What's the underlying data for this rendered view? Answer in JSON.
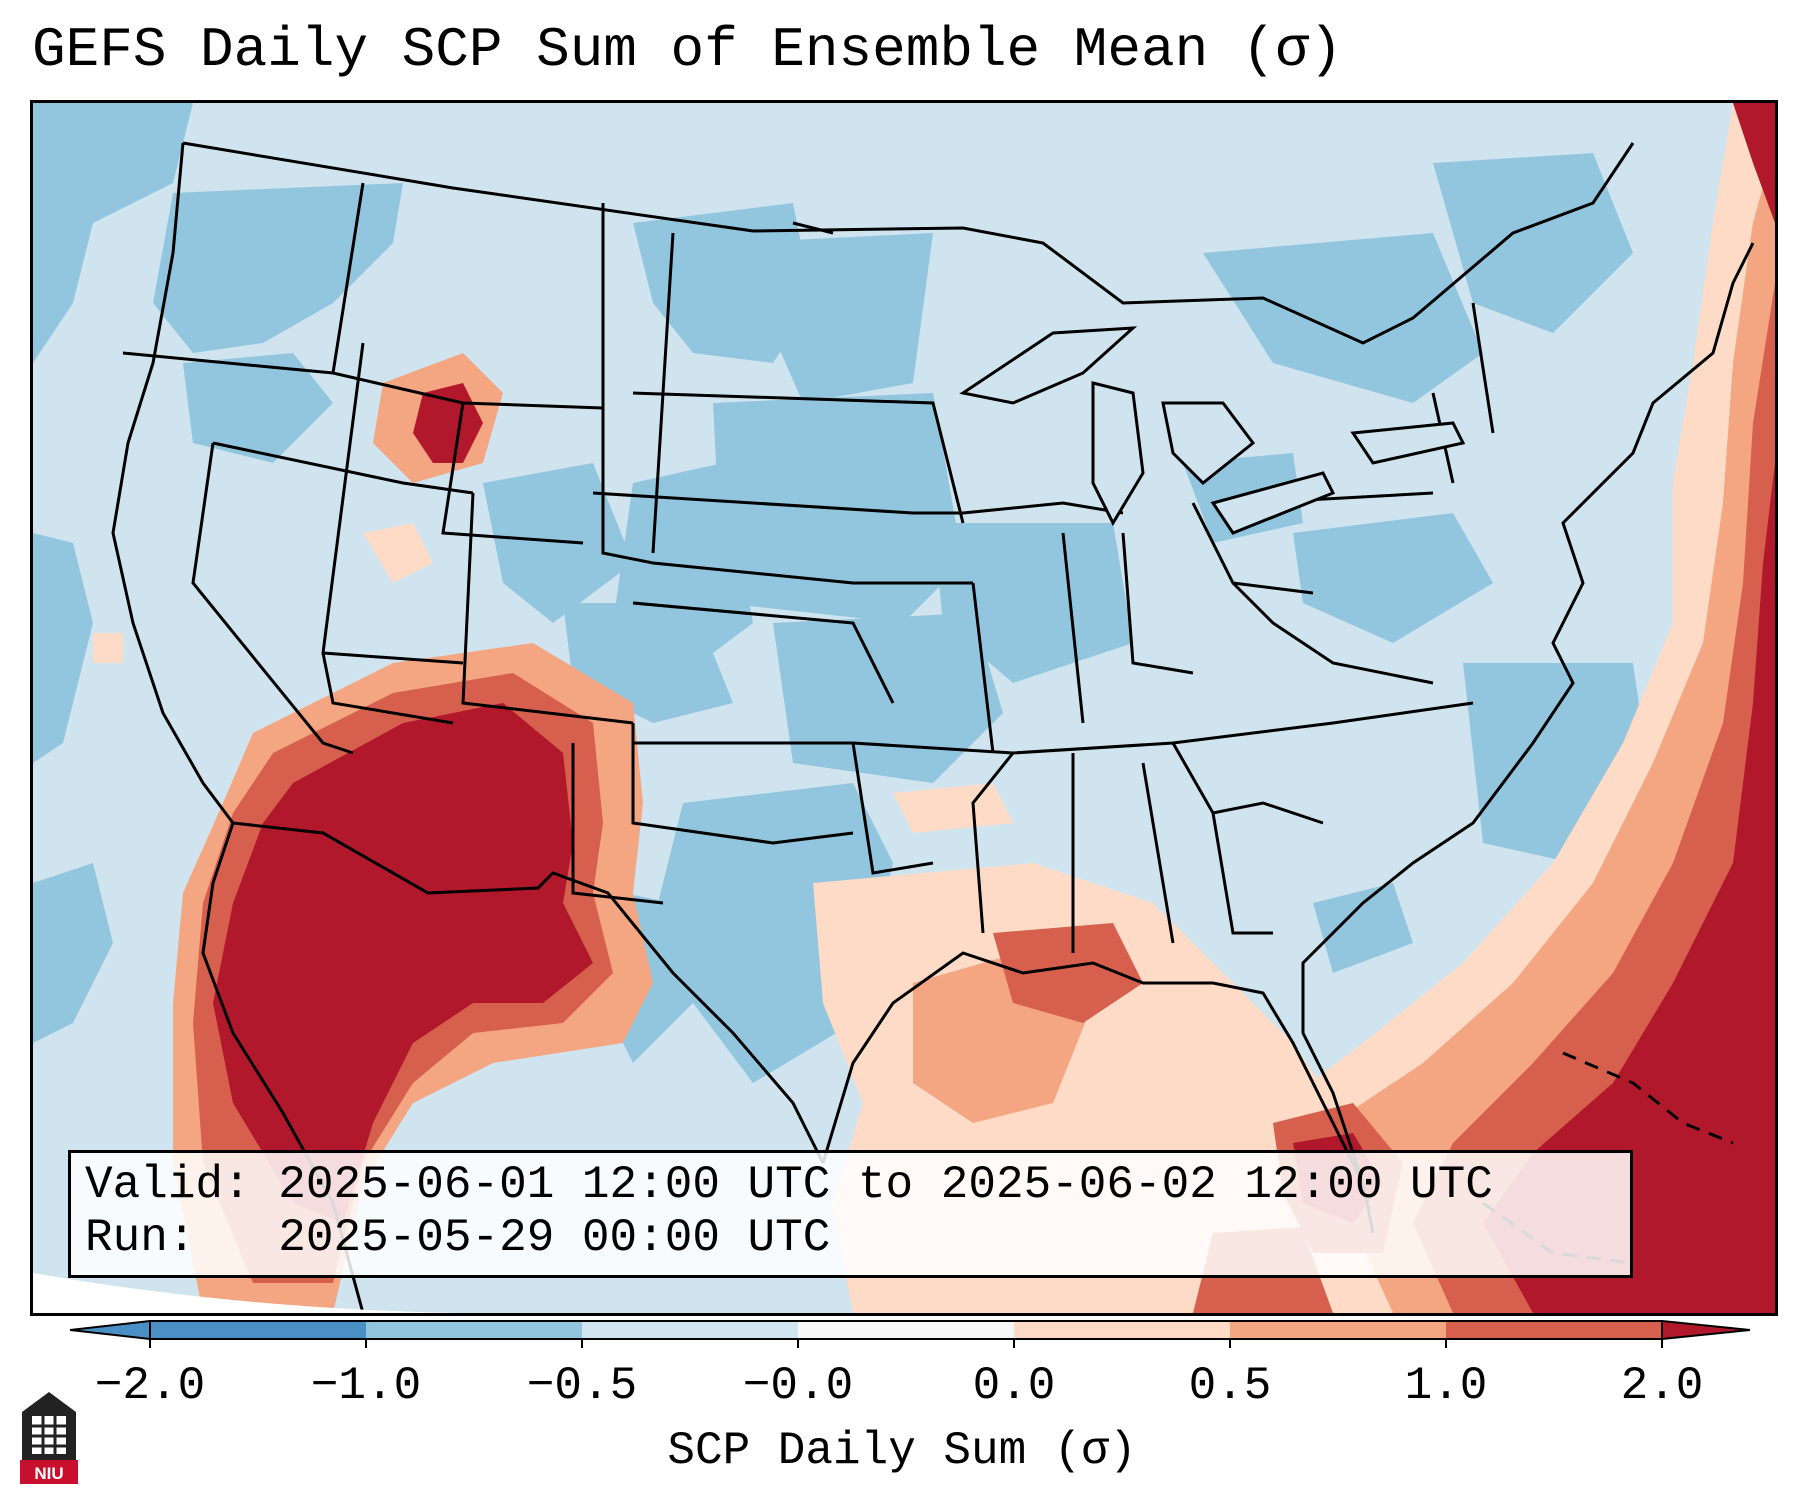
{
  "title": "GEFS Daily SCP Sum of Ensemble Mean (σ)",
  "info": {
    "valid_label": "Valid:",
    "valid_value": "2025-06-01 12:00 UTC to 2025-06-02 12:00 UTC",
    "run_label": "Run:",
    "run_value": "2025-05-29 00:00 UTC"
  },
  "colorbar": {
    "label": "SCP Daily Sum (σ)",
    "ticks": [
      "−2.0",
      "−1.0",
      "−0.5",
      "−0.0",
      "0.0",
      "0.5",
      "1.0",
      "2.0"
    ],
    "colors": [
      "#4a90c4",
      "#92c5de",
      "#d1e5f0",
      "#f7f7f7",
      "#fddbc7",
      "#f4a582",
      "#d6604d",
      "#b2182b"
    ]
  },
  "logo": {
    "text": "NIU"
  },
  "map": {
    "region": "Continental United States",
    "background_color": "#d0e4ef",
    "warm_color_strong": "#b2182b",
    "warm_color_mid": "#d6604d",
    "warm_color_light": "#f4a582",
    "warm_color_pale": "#fddbc7",
    "cool_color": "#92c5de"
  }
}
